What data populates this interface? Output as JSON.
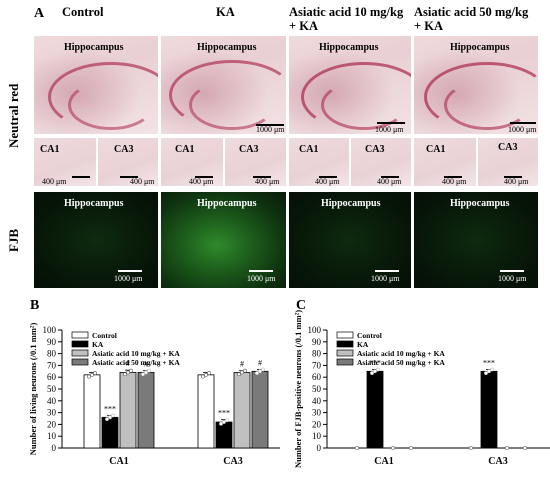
{
  "panel_a": {
    "letter": "A",
    "columns": [
      "Control",
      "KA",
      "Asiatic acid 10 mg/kg + KA",
      "Asiatic acid 50 mg/kg + KA"
    ],
    "column_lines": [
      [
        "Control"
      ],
      [
        "KA"
      ],
      [
        "Asiatic acid 10 mg/kg",
        "+ KA"
      ],
      [
        "Asiatic acid 50 mg/kg",
        "+ KA"
      ]
    ],
    "row_neutral": "Neutral red",
    "row_fjb": "FJB",
    "hippocampus_label": "Hippocampus",
    "ca1_label": "CA1",
    "ca3_label": "CA3",
    "scale_big": "1000 μm",
    "scale_small": "400 μm"
  },
  "chart_data": [
    {
      "type": "bar",
      "panel": "B",
      "ylabel": "Number of living neurons (/0.1 mm²)",
      "ylim": [
        0,
        100
      ],
      "yticks": [
        0,
        10,
        20,
        30,
        40,
        50,
        60,
        70,
        80,
        90,
        100
      ],
      "categories": [
        "CA1",
        "CA3"
      ],
      "series": [
        {
          "name": "Control",
          "values": [
            62,
            62
          ],
          "errors": [
            2,
            2
          ],
          "color": "#ffffff",
          "sig": [
            "",
            ""
          ]
        },
        {
          "name": "KA",
          "values": [
            26,
            22
          ],
          "errors": [
            1.5,
            2
          ],
          "color": "#000000",
          "sig": [
            "***",
            "***"
          ]
        },
        {
          "name": "Asiatic acid 10 mg/kg + KA",
          "values": [
            64,
            64
          ],
          "errors": [
            2,
            1.5
          ],
          "color": "#c0c0c0",
          "sig": [
            "#",
            "#"
          ]
        },
        {
          "name": "Asiatic acid 50 mg/kg + KA",
          "values": [
            64,
            65
          ],
          "errors": [
            1.5,
            1.5
          ],
          "color": "#7a7a7a",
          "sig": [
            "#",
            "#"
          ]
        }
      ],
      "legend": "top-left"
    },
    {
      "type": "bar",
      "panel": "C",
      "ylabel": "Number of FJB-positive neurons (/0.1 mm²)",
      "ylim": [
        0,
        100
      ],
      "yticks": [
        0,
        10,
        20,
        30,
        40,
        50,
        60,
        70,
        80,
        90,
        100
      ],
      "categories": [
        "CA1",
        "CA3"
      ],
      "series": [
        {
          "name": "Control",
          "values": [
            0,
            0
          ],
          "errors": [
            0,
            0
          ],
          "color": "#ffffff",
          "sig": [
            "",
            ""
          ]
        },
        {
          "name": "KA",
          "values": [
            65,
            65
          ],
          "errors": [
            1.5,
            1.5
          ],
          "color": "#000000",
          "sig": [
            "***",
            "***"
          ]
        },
        {
          "name": "Asiatic acid 10 mg/kg + KA",
          "values": [
            0,
            0
          ],
          "errors": [
            0,
            0
          ],
          "color": "#c0c0c0",
          "sig": [
            "",
            ""
          ]
        },
        {
          "name": "Asiatic acid 50 mg/kg + KA",
          "values": [
            0,
            0
          ],
          "errors": [
            0,
            0
          ],
          "color": "#7a7a7a",
          "sig": [
            "",
            ""
          ]
        }
      ],
      "legend": "top-left"
    }
  ]
}
